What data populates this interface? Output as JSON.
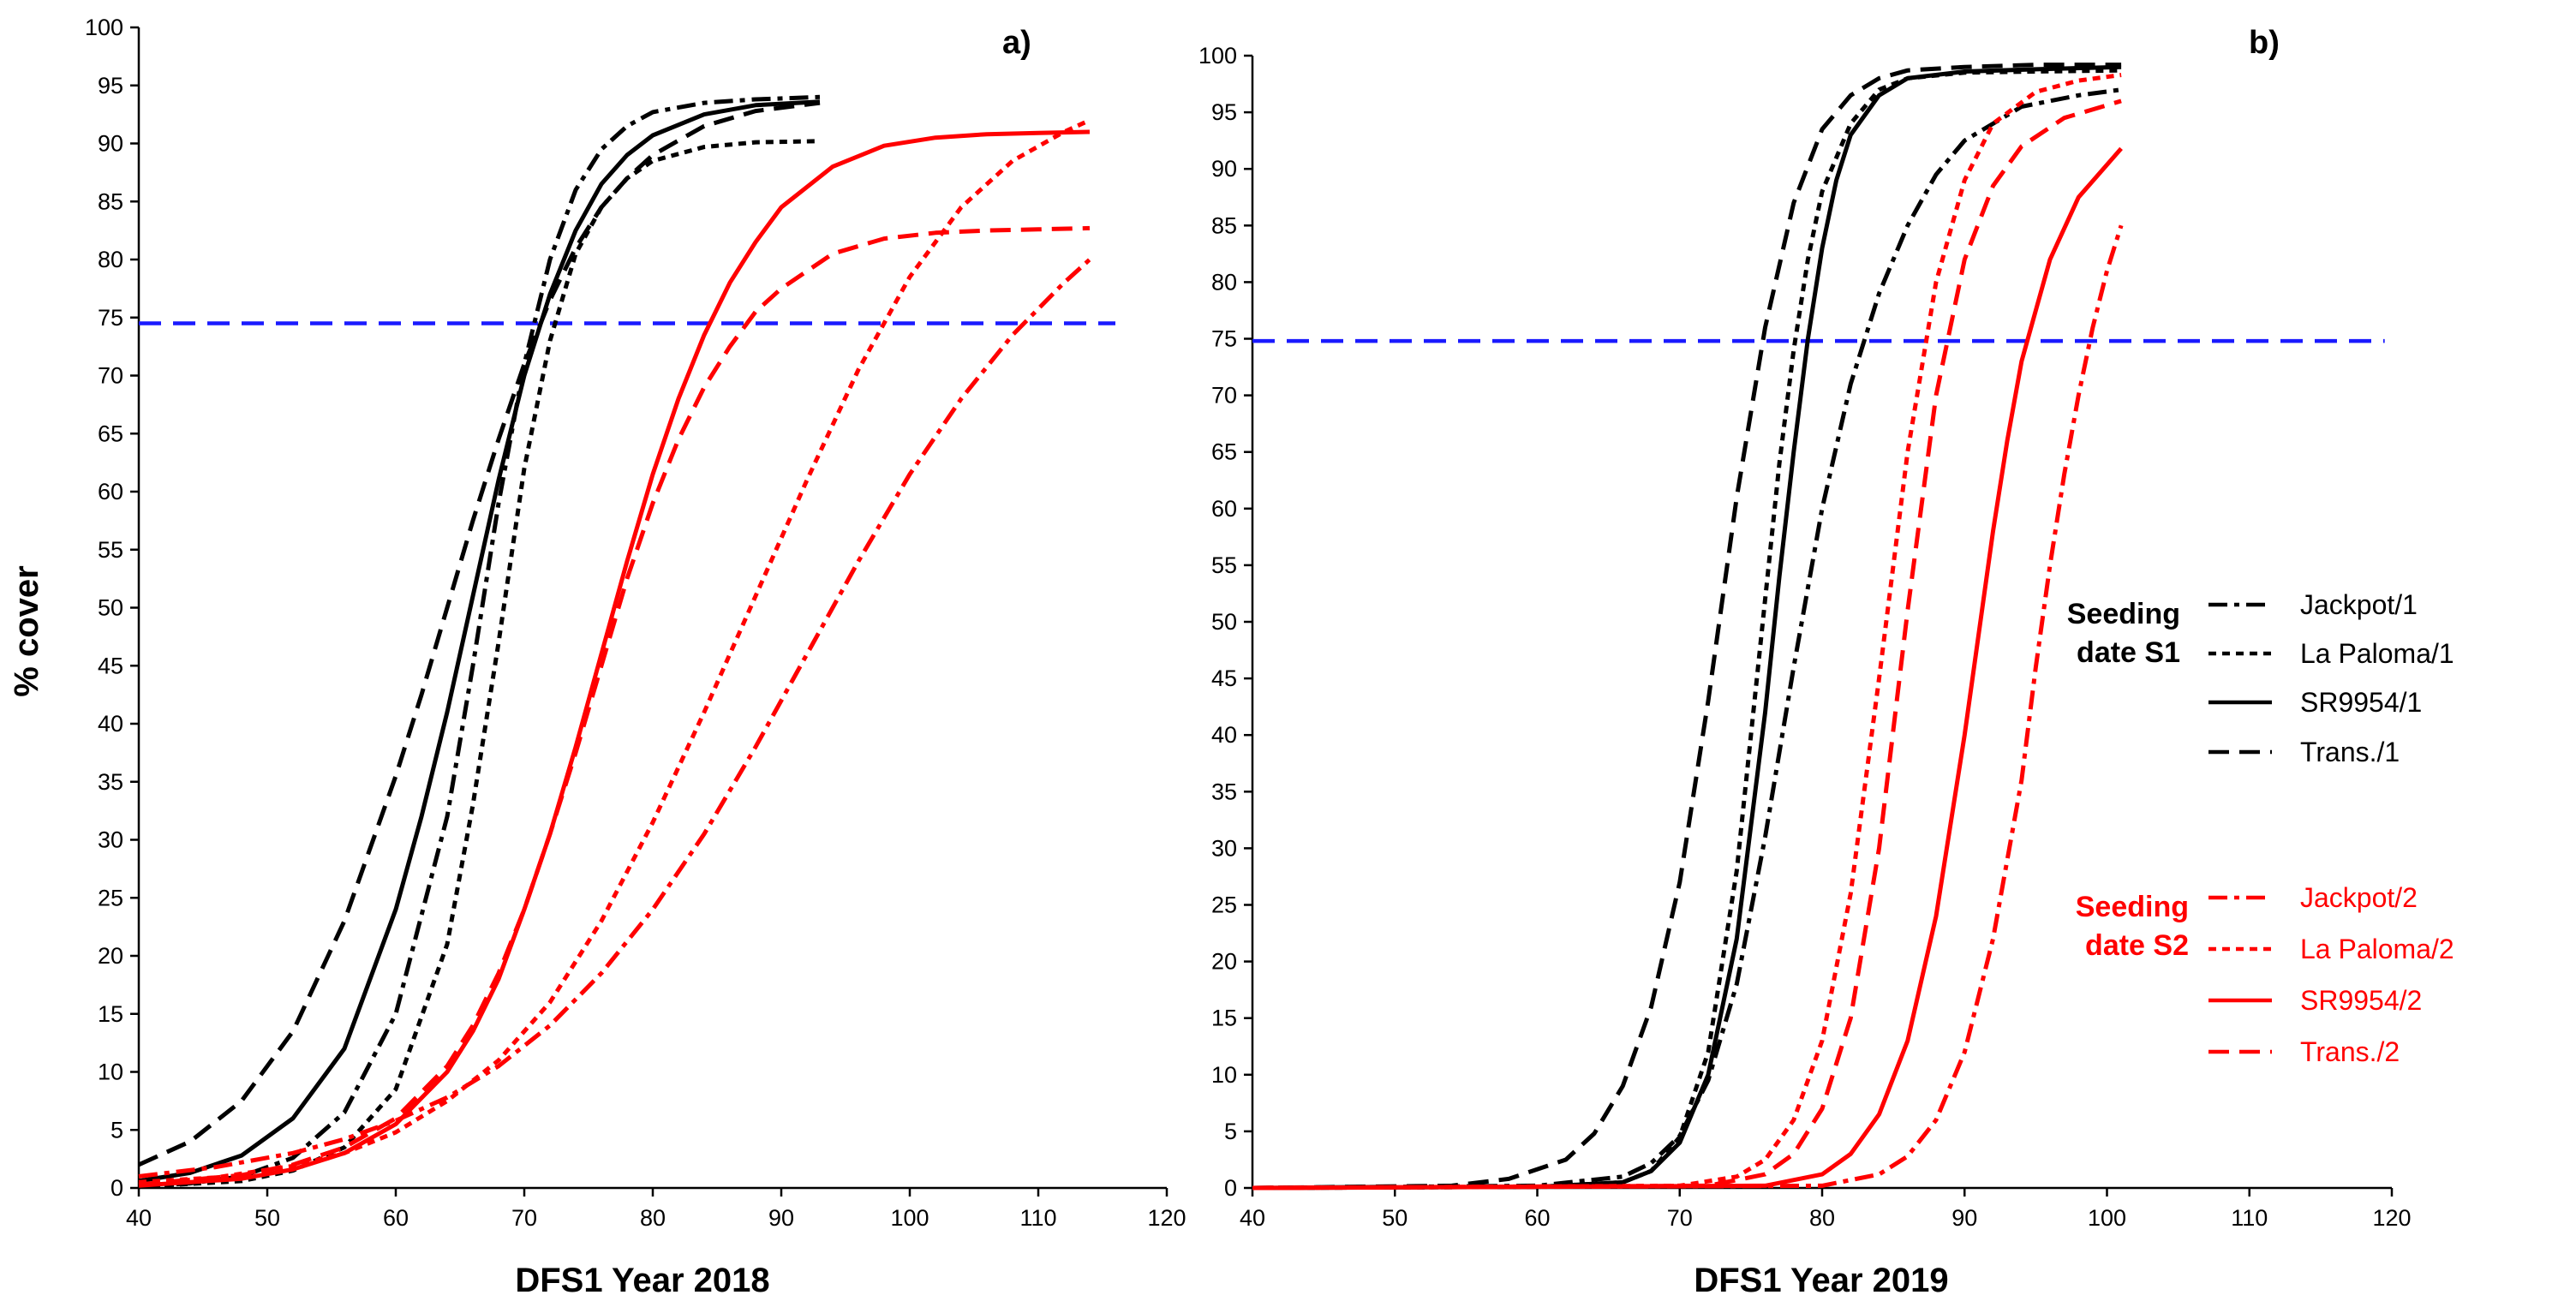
{
  "chart_data": [
    {
      "type": "line",
      "title": "a)",
      "xlabel": "DFS1 Year 2018",
      "ylabel": "% cover",
      "xlim": [
        40,
        120
      ],
      "ylim": [
        0,
        100
      ],
      "xticks": [
        "40",
        "50",
        "60",
        "70",
        "80",
        "90",
        "100",
        "110",
        "120"
      ],
      "yticks": [
        "0",
        "5",
        "10",
        "15",
        "20",
        "25",
        "30",
        "35",
        "40",
        "45",
        "50",
        "55",
        "60",
        "65",
        "70",
        "75",
        "80",
        "85",
        "90",
        "95",
        "100"
      ],
      "reference_line": {
        "y": 74.5,
        "x_range": [
          40,
          116
        ],
        "color": "#1a1aff"
      },
      "series": [
        {
          "name": "Jackpot/1",
          "color": "#000000",
          "style": "dashdot",
          "x_range": [
            40,
            93
          ],
          "x": [
            40,
            44,
            48,
            52,
            56,
            60,
            64,
            66,
            68,
            70,
            72,
            74,
            76,
            78,
            80,
            84,
            88,
            93
          ],
          "y": [
            0.1,
            0.4,
            1,
            2.6,
            6.5,
            15,
            32,
            45,
            59,
            71,
            80,
            86,
            89.5,
            91.5,
            92.7,
            93.5,
            93.8,
            94
          ]
        },
        {
          "name": "La Paloma/1",
          "color": "#000000",
          "style": "dot",
          "x_range": [
            40,
            93
          ],
          "x": [
            40,
            48,
            52,
            56,
            60,
            64,
            66,
            68,
            70,
            72,
            74,
            76,
            78,
            80,
            84,
            88,
            93
          ],
          "y": [
            0.1,
            0.6,
            1.5,
            3.5,
            8.5,
            21,
            33,
            47,
            62,
            73,
            80.5,
            84.5,
            87,
            88.5,
            89.7,
            90.1,
            90.2
          ]
        },
        {
          "name": "SR9954/1",
          "color": "#000000",
          "style": "solid",
          "x_range": [
            40,
            93
          ],
          "x": [
            40,
            44,
            48,
            52,
            56,
            60,
            62,
            64,
            66,
            68,
            70,
            72,
            74,
            76,
            78,
            80,
            84,
            88,
            93
          ],
          "y": [
            0.6,
            1.3,
            2.8,
            6,
            12,
            24,
            32,
            41,
            51,
            61,
            70,
            77,
            82.5,
            86.5,
            89,
            90.7,
            92.5,
            93.3,
            93.6
          ]
        },
        {
          "name": "Trans./1",
          "color": "#000000",
          "style": "dash",
          "x_range": [
            40,
            93
          ],
          "x": [
            40,
            44,
            48,
            52,
            56,
            60,
            62,
            64,
            66,
            68,
            70,
            72,
            74,
            76,
            78,
            80,
            84,
            88,
            93
          ],
          "y": [
            2,
            4,
            7.5,
            13.5,
            23,
            35.5,
            42.5,
            50,
            57.5,
            64.5,
            71,
            76.5,
            81,
            84.5,
            87,
            89,
            91.5,
            92.8,
            93.5
          ]
        },
        {
          "name": "Jackpot/2",
          "color": "#ff0000",
          "style": "dashdot",
          "x_range": [
            40,
            114
          ],
          "x": [
            40,
            46,
            52,
            56,
            60,
            64,
            68,
            72,
            76,
            80,
            84,
            88,
            92,
            96,
            100,
            104,
            108,
            112,
            114
          ],
          "y": [
            1,
            1.8,
            3,
            4.2,
            5.8,
            7.8,
            10.5,
            14,
            18.5,
            24,
            30.5,
            38,
            46,
            54,
            61.5,
            68,
            73.5,
            78,
            80
          ]
        },
        {
          "name": "La Paloma/2",
          "color": "#ff0000",
          "style": "dot",
          "x_range": [
            40,
            114
          ],
          "x": [
            40,
            46,
            52,
            56,
            60,
            64,
            68,
            72,
            76,
            80,
            84,
            88,
            92,
            96,
            100,
            104,
            108,
            112,
            114
          ],
          "y": [
            0.5,
            0.9,
            1.9,
            3,
            4.8,
            7.5,
            11,
            16,
            23,
            31.5,
            41,
            51,
            61,
            70.5,
            78.5,
            84.5,
            88.5,
            91,
            92
          ]
        },
        {
          "name": "SR9954/2",
          "color": "#ff0000",
          "style": "solid",
          "x_range": [
            40,
            114
          ],
          "x": [
            40,
            48,
            52,
            56,
            60,
            64,
            66,
            68,
            70,
            72,
            74,
            76,
            78,
            80,
            82,
            84,
            86,
            88,
            90,
            94,
            98,
            102,
            106,
            110,
            114
          ],
          "y": [
            0.2,
            0.8,
            1.6,
            3,
            5.5,
            10,
            13.5,
            18,
            24,
            30.5,
            38,
            46,
            54,
            61.5,
            68,
            73.5,
            78,
            81.5,
            84.5,
            88,
            89.8,
            90.5,
            90.8,
            90.9,
            91
          ]
        },
        {
          "name": "Trans./2",
          "color": "#ff0000",
          "style": "dash",
          "x_range": [
            40,
            114
          ],
          "x": [
            40,
            48,
            52,
            56,
            60,
            64,
            66,
            68,
            70,
            72,
            74,
            76,
            78,
            80,
            82,
            84,
            86,
            88,
            90,
            94,
            98,
            102,
            106,
            110,
            114
          ],
          "y": [
            0.3,
            1.1,
            2,
            3.5,
            6,
            10.5,
            14,
            18.5,
            24,
            30.5,
            37.5,
            45,
            52.5,
            59,
            64.5,
            69,
            72.5,
            75.5,
            77.5,
            80.5,
            81.8,
            82.3,
            82.5,
            82.6,
            82.7
          ]
        }
      ]
    },
    {
      "type": "line",
      "title": "b)",
      "xlabel": "DFS1 Year 2019",
      "ylabel": "",
      "xlim": [
        40,
        120
      ],
      "ylim": [
        0,
        100
      ],
      "xticks": [
        "40",
        "50",
        "60",
        "70",
        "80",
        "90",
        "100",
        "110",
        "120"
      ],
      "yticks": [
        "0",
        "5",
        "10",
        "15",
        "20",
        "25",
        "30",
        "35",
        "40",
        "45",
        "50",
        "55",
        "60",
        "65",
        "70",
        "75",
        "80",
        "85",
        "90",
        "95",
        "100"
      ],
      "reference_line": {
        "y": 74.8,
        "x_range": [
          40,
          119.5
        ],
        "color": "#1a1aff"
      },
      "series": [
        {
          "name": "Jackpot/1",
          "color": "#000000",
          "style": "dashdot",
          "x_range": [
            40,
            101
          ],
          "x": [
            40,
            60,
            66,
            68,
            70,
            72,
            74,
            76,
            78,
            80,
            82,
            84,
            86,
            88,
            90,
            94,
            98,
            101
          ],
          "y": [
            0,
            0.2,
            1,
            2.2,
            4.6,
            9.5,
            18,
            31,
            46,
            60,
            71,
            79,
            85,
            89.5,
            92.5,
            95.5,
            96.5,
            97
          ]
        },
        {
          "name": "La Paloma/1",
          "color": "#000000",
          "style": "dot",
          "x_range": [
            40,
            101
          ],
          "x": [
            40,
            60,
            66,
            68,
            70,
            72,
            74,
            76,
            77,
            78,
            79,
            80,
            82,
            84,
            86,
            90,
            95,
            101
          ],
          "y": [
            0,
            0.1,
            0.5,
            1.5,
            4.5,
            12,
            28,
            52,
            64,
            74,
            82,
            88,
            94,
            97,
            98,
            98.5,
            98.6,
            98.7
          ]
        },
        {
          "name": "SR9954/1",
          "color": "#000000",
          "style": "solid",
          "x_range": [
            40,
            101
          ],
          "x": [
            40,
            60,
            66,
            68,
            70,
            72,
            74,
            76,
            77,
            78,
            79,
            80,
            81,
            82,
            84,
            86,
            90,
            95,
            101
          ],
          "y": [
            0,
            0.1,
            0.5,
            1.5,
            4,
            10,
            22,
            42,
            54,
            65,
            75,
            83,
            89,
            93,
            96.5,
            98,
            98.6,
            98.8,
            99
          ]
        },
        {
          "name": "Trans./1",
          "color": "#000000",
          "style": "dash",
          "x_range": [
            40,
            101
          ],
          "x": [
            40,
            54,
            58,
            62,
            64,
            66,
            68,
            70,
            72,
            74,
            76,
            78,
            80,
            82,
            84,
            86,
            90,
            95,
            101
          ],
          "y": [
            0,
            0.2,
            0.8,
            2.5,
            4.8,
            9,
            16,
            27,
            43,
            61,
            76,
            87,
            93.5,
            96.5,
            98,
            98.7,
            99,
            99.2,
            99.2
          ]
        },
        {
          "name": "Jackpot/2",
          "color": "#ff0000",
          "style": "dashdot",
          "x_range": [
            40,
            101
          ],
          "x": [
            40,
            80,
            84,
            86,
            88,
            90,
            92,
            94,
            95,
            96,
            97,
            98,
            99,
            100,
            101
          ],
          "y": [
            0,
            0.2,
            1.2,
            2.8,
            6,
            12,
            22,
            36,
            46,
            55,
            63,
            70,
            76,
            81,
            85
          ]
        },
        {
          "name": "La Paloma/2",
          "color": "#ff0000",
          "style": "dot",
          "x_range": [
            40,
            101
          ],
          "x": [
            40,
            70,
            74,
            76,
            78,
            80,
            82,
            84,
            86,
            88,
            90,
            92,
            95,
            98,
            101
          ],
          "y": [
            0,
            0.2,
            1,
            2.5,
            6,
            13,
            26,
            45,
            65,
            80,
            89,
            94,
            96.8,
            97.8,
            98.3
          ]
        },
        {
          "name": "SR9954/2",
          "color": "#ff0000",
          "style": "solid",
          "x_range": [
            40,
            101
          ],
          "x": [
            40,
            76,
            80,
            82,
            84,
            86,
            88,
            90,
            92,
            93,
            94,
            96,
            98,
            101
          ],
          "y": [
            0,
            0.2,
            1.2,
            3,
            6.5,
            13,
            24,
            40,
            58,
            66,
            73,
            82,
            87.5,
            91.8
          ]
        },
        {
          "name": "Trans./2",
          "color": "#ff0000",
          "style": "dash",
          "x_range": [
            40,
            101
          ],
          "x": [
            40,
            72,
            76,
            78,
            80,
            82,
            84,
            86,
            88,
            90,
            92,
            94,
            97,
            101
          ],
          "y": [
            0,
            0.2,
            1.2,
            3,
            7,
            15,
            30,
            51,
            70,
            82,
            88.5,
            92,
            94.5,
            96
          ]
        }
      ]
    }
  ],
  "legend": {
    "group1_heading_line1": "Seeding",
    "group1_heading_line2": "date S1",
    "group1_color": "#000000",
    "group2_heading_line1": "Seeding",
    "group2_heading_line2": "date S2",
    "group2_color": "#ff0000",
    "items": [
      {
        "label": "Jackpot/1",
        "style": "dashdot",
        "color": "#000000"
      },
      {
        "label": "La Paloma/1",
        "style": "dot",
        "color": "#000000"
      },
      {
        "label": "SR9954/1",
        "style": "solid",
        "color": "#000000"
      },
      {
        "label": "Trans./1",
        "style": "dash",
        "color": "#000000"
      },
      {
        "label": "Jackpot/2",
        "style": "dashdot",
        "color": "#ff0000"
      },
      {
        "label": "La Paloma/2",
        "style": "dot",
        "color": "#ff0000"
      },
      {
        "label": "SR9954/2",
        "style": "solid",
        "color": "#ff0000"
      },
      {
        "label": "Trans./2",
        "style": "dash",
        "color": "#ff0000"
      }
    ]
  }
}
